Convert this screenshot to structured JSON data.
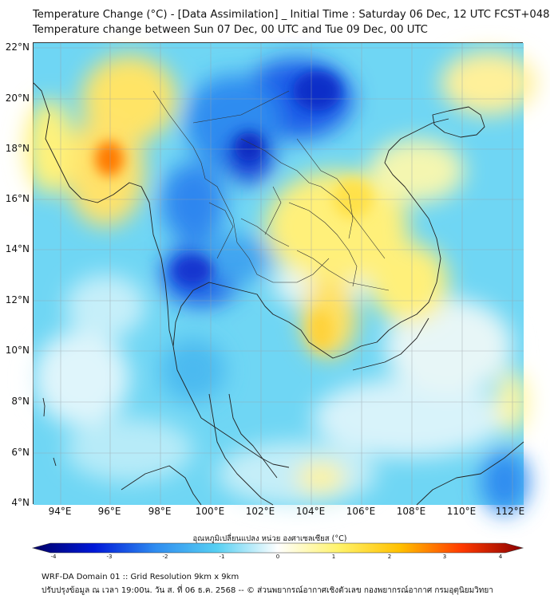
{
  "title_line1": "Temperature Change (°C) - [Data Assimilation] _ Initial Time : Saturday 06 Dec, 12 UTC FCST+048",
  "title_line2": "Temperature change between Sun 07 Dec, 00 UTC and Tue 09 Dec, 00 UTC",
  "lat_labels": [
    "22°N",
    "20°N",
    "18°N",
    "16°N",
    "14°N",
    "12°N",
    "10°N",
    "8°N",
    "6°N",
    "4°N"
  ],
  "lon_labels": [
    "94°E",
    "96°E",
    "98°E",
    "100°E",
    "102°E",
    "104°E",
    "106°E",
    "108°E",
    "110°E",
    "112°E"
  ],
  "colorbar": {
    "title": "อุณหภูมิเปลี่ยนแปลง หน่วย องศาเซลเซียส (°C)",
    "ticks": [
      "-4",
      "-3",
      "-2",
      "-1",
      "0",
      "1",
      "2",
      "3",
      "4"
    ],
    "range": [
      -4,
      4
    ],
    "colors": [
      "#000066",
      "#0018d8",
      "#2f8cf0",
      "#56cff2",
      "#ffffff",
      "#fff36a",
      "#ffc000",
      "#ff3a00",
      "#8a0000"
    ]
  },
  "footer_line1": "WRF-DA Domain 01 :: Grid Resolution 9km x 9km",
  "footer_line2": "ปรับปรุงข้อมูล ณ เวลา 19:00น. วัน ส. ที่ 06 ธ.ค. 2568 -- © ส่วนพยากรณ์อากาศเชิงตัวเลข กองพยากรณ์อากาศ กรมอุตุนิยมวิทยา"
}
